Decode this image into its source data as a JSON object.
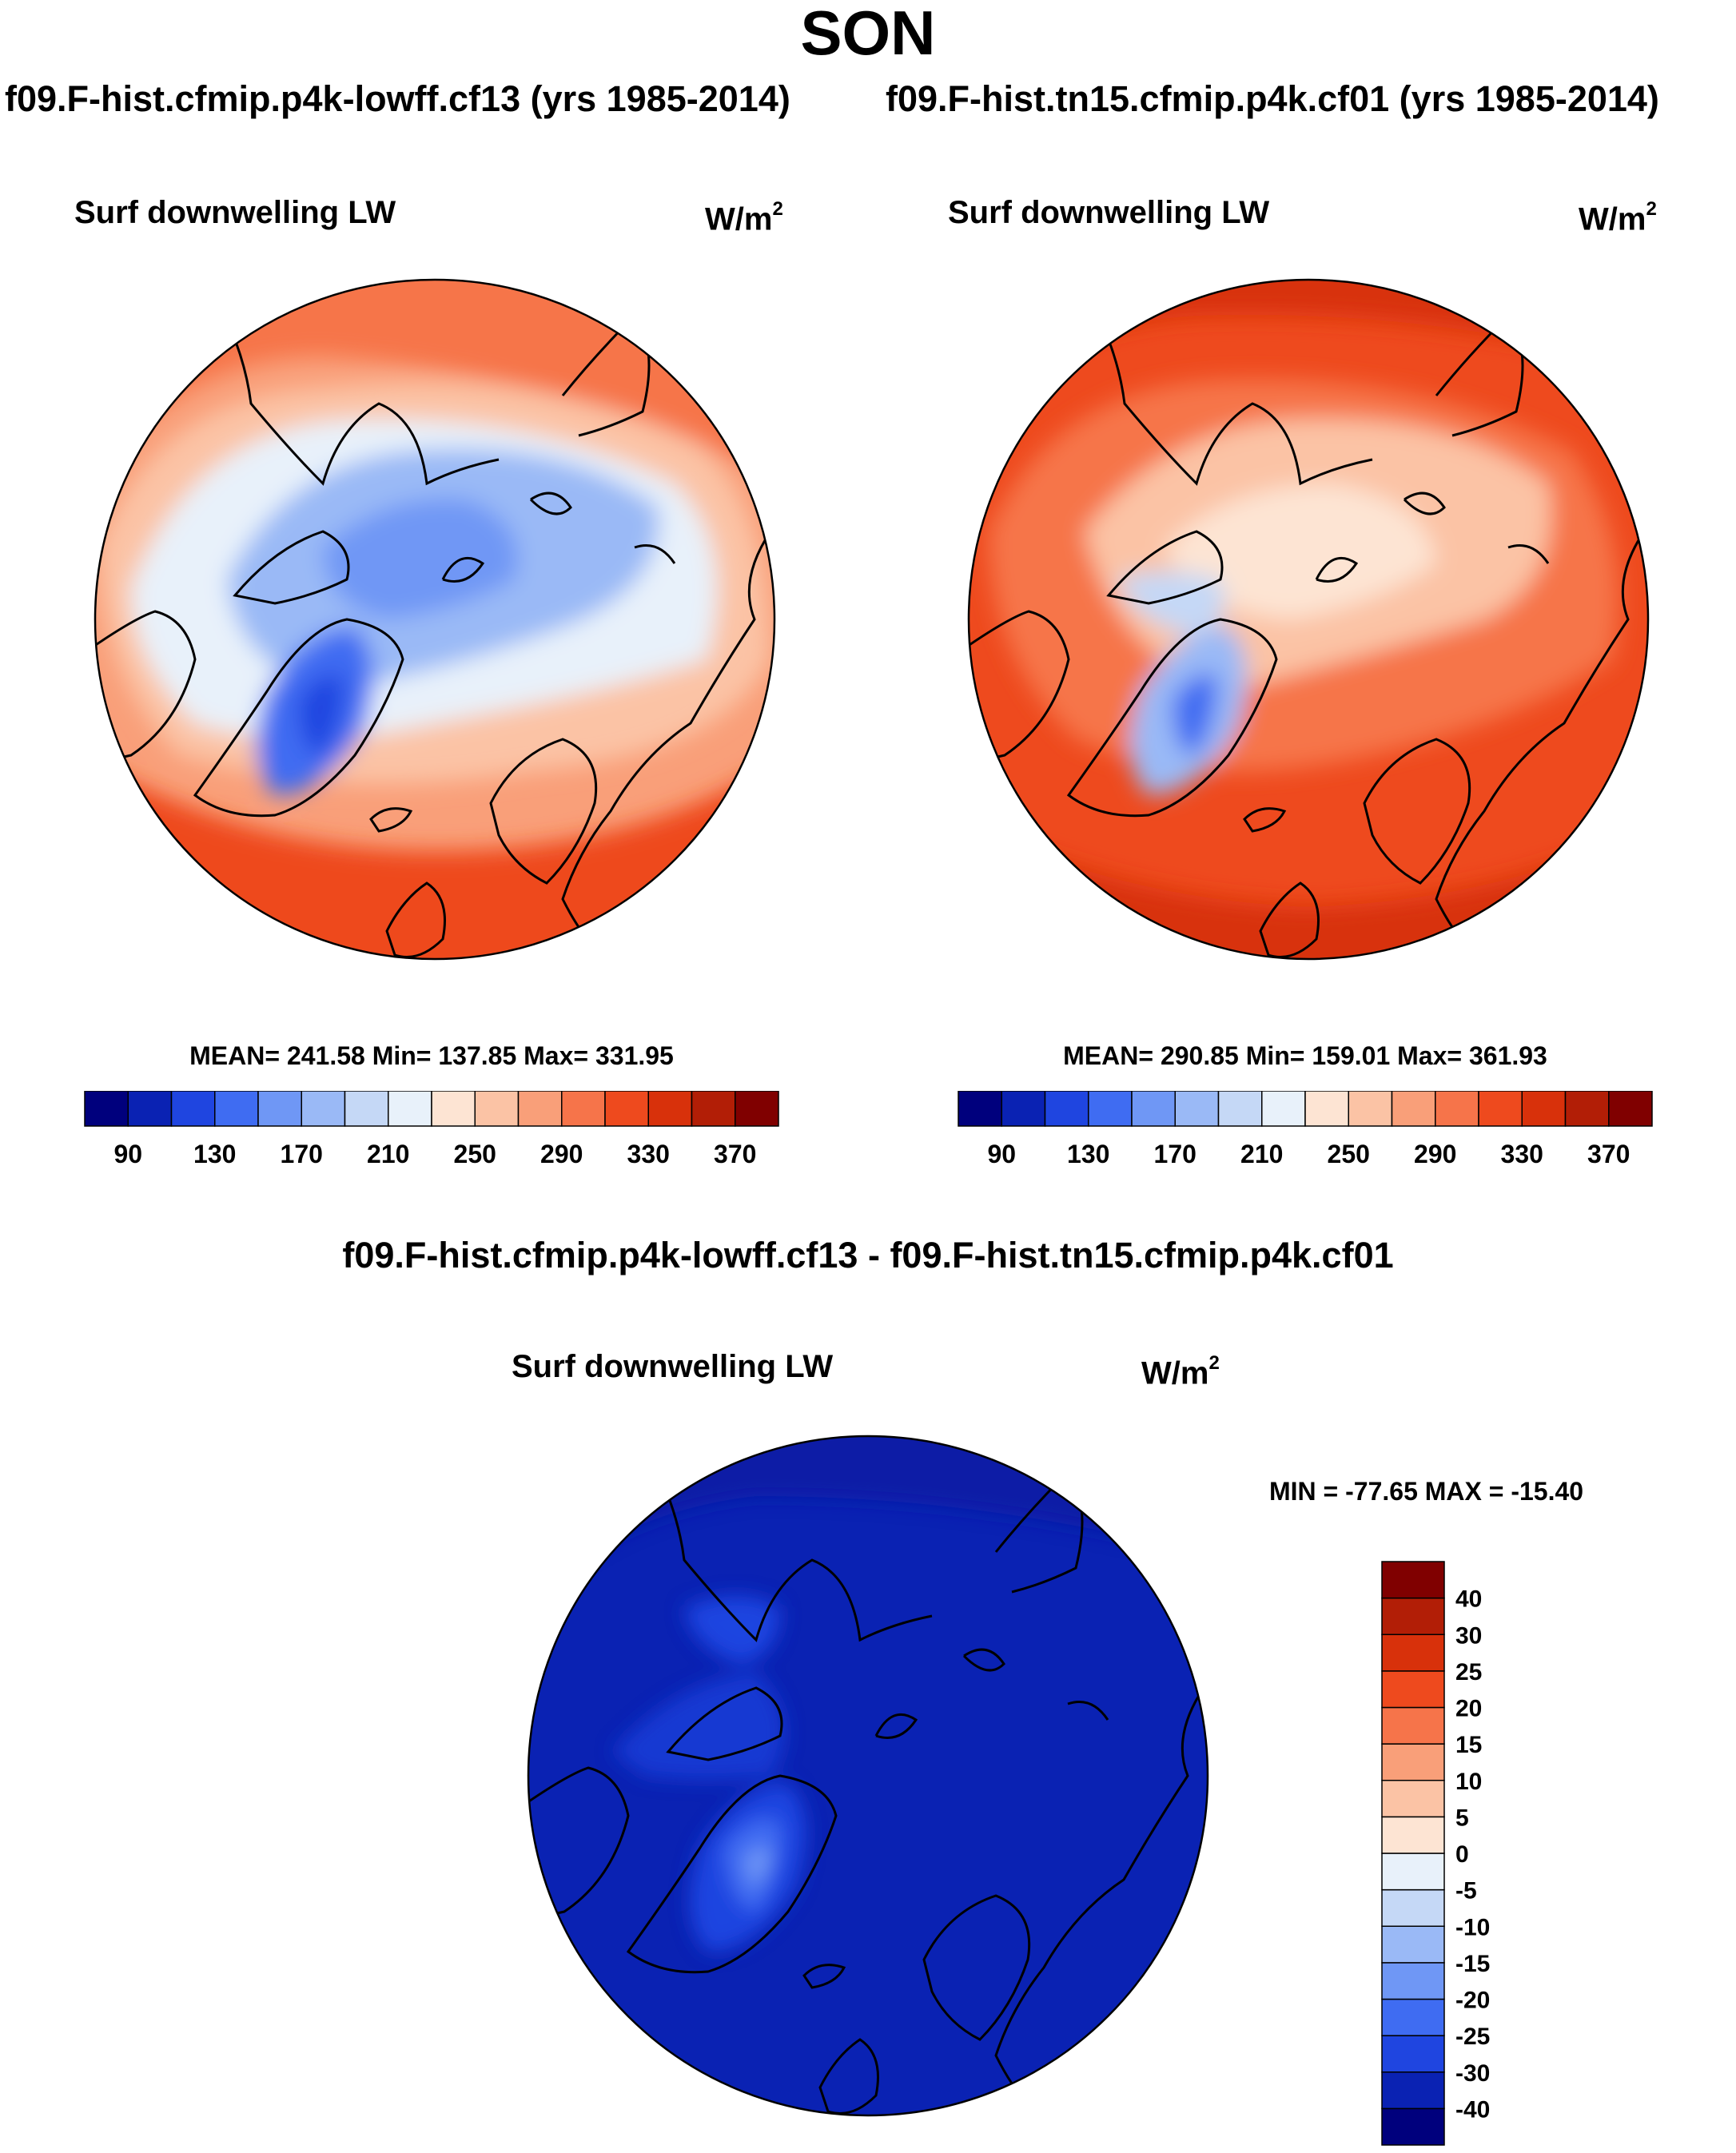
{
  "figure": {
    "title": "SON",
    "left_run": "f09.F-hist.cfmip.p4k-lowff.cf13 (yrs 1985-2014)",
    "right_run": "f09.F-hist.tn15.cfmip.p4k.cf01 (yrs 1985-2014)",
    "diff_title": "f09.F-hist.cfmip.p4k-lowff.cf13 - f09.F-hist.tn15.cfmip.p4k.cf01"
  },
  "chart_data": [
    {
      "type": "heatmap",
      "projection": "north polar stereographic",
      "title": "Surf downwelling LW",
      "units_base": "W/m",
      "units_exp": "2",
      "stats_label": "MEAN= 241.58  Min= 137.85  Max= 331.95",
      "mean": 241.58,
      "min": 137.85,
      "max": 331.95,
      "colorbar": {
        "levels": [
          90,
          110,
          130,
          150,
          170,
          190,
          210,
          230,
          250,
          270,
          290,
          310,
          330,
          350,
          370
        ],
        "tick_labels": [
          "90",
          "130",
          "170",
          "210",
          "250",
          "290",
          "330",
          "370"
        ],
        "colors": [
          "#00007d",
          "#0a22b3",
          "#1f45e0",
          "#3f6cf2",
          "#6f97f5",
          "#9ab9f6",
          "#c5d8f6",
          "#e8f1fa",
          "#fde4d3",
          "#fbc3a5",
          "#f99f79",
          "#f6744a",
          "#ee4a1e",
          "#d8310b",
          "#b21e06",
          "#800000"
        ]
      }
    },
    {
      "type": "heatmap",
      "projection": "north polar stereographic",
      "title": "Surf downwelling LW",
      "units_base": "W/m",
      "units_exp": "2",
      "stats_label": "MEAN= 290.85  Min= 159.01  Max= 361.93",
      "mean": 290.85,
      "min": 159.01,
      "max": 361.93,
      "colorbar": {
        "levels": [
          90,
          110,
          130,
          150,
          170,
          190,
          210,
          230,
          250,
          270,
          290,
          310,
          330,
          350,
          370
        ],
        "tick_labels": [
          "90",
          "130",
          "170",
          "210",
          "250",
          "290",
          "330",
          "370"
        ],
        "colors": [
          "#00007d",
          "#0a22b3",
          "#1f45e0",
          "#3f6cf2",
          "#6f97f5",
          "#9ab9f6",
          "#c5d8f6",
          "#e8f1fa",
          "#fde4d3",
          "#fbc3a5",
          "#f99f79",
          "#f6744a",
          "#ee4a1e",
          "#d8310b",
          "#b21e06",
          "#800000"
        ]
      }
    },
    {
      "type": "heatmap",
      "projection": "north polar stereographic",
      "title": "Surf downwelling LW",
      "units_base": "W/m",
      "units_exp": "2",
      "stats_label": "MIN = -77.65 MAX = -15.40",
      "min": -77.65,
      "max": -15.4,
      "colorbar": {
        "orientation": "vertical",
        "levels": [
          -40,
          -30,
          -25,
          -20,
          -15,
          -10,
          -5,
          0,
          5,
          10,
          15,
          20,
          25,
          30,
          40
        ],
        "tick_labels": [
          "-40",
          "-30",
          "-25",
          "-20",
          "-15",
          "-10",
          "-5",
          "0",
          "5",
          "10",
          "15",
          "20",
          "25",
          "30",
          "40"
        ],
        "colors": [
          "#00007d",
          "#0a22b3",
          "#1f45e0",
          "#3f6cf2",
          "#6f97f5",
          "#9ab9f6",
          "#c5d8f6",
          "#e8f1fa",
          "#fde4d3",
          "#fbc3a5",
          "#f99f79",
          "#f6744a",
          "#ee4a1e",
          "#d8310b",
          "#b21e06",
          "#800000"
        ]
      }
    }
  ]
}
